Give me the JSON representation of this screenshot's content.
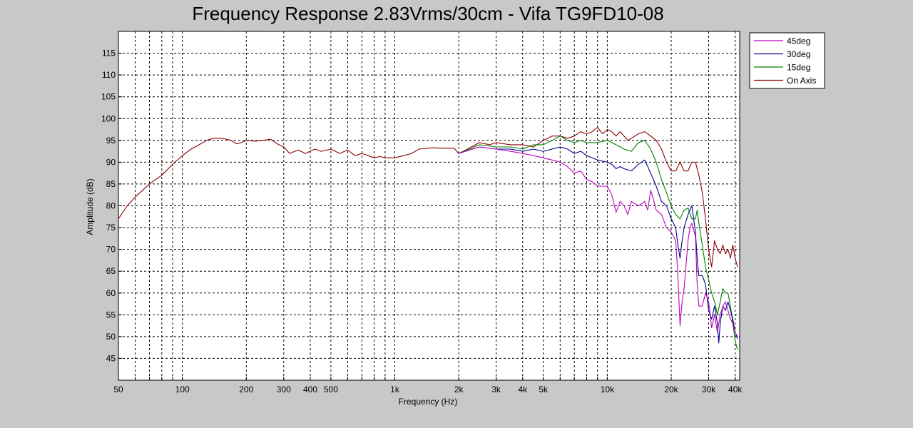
{
  "chart_data": {
    "type": "line",
    "title": "Frequency Response 2.83Vrms/30cm - Vifa TG9FD10-08",
    "xlabel": "Frequency (Hz)",
    "ylabel": "Amplitude (dB)",
    "xscale": "log",
    "xlim": [
      50,
      42000
    ],
    "ylim": [
      40,
      120
    ],
    "grid": true,
    "legend_position": "outside-top-right",
    "x_ticks": [
      {
        "value": 50,
        "label": "50"
      },
      {
        "value": 100,
        "label": "100"
      },
      {
        "value": 200,
        "label": "200"
      },
      {
        "value": 300,
        "label": "300"
      },
      {
        "value": 400,
        "label": "400"
      },
      {
        "value": 500,
        "label": "500"
      },
      {
        "value": 1000,
        "label": "1k"
      },
      {
        "value": 2000,
        "label": "2k"
      },
      {
        "value": 3000,
        "label": "3k"
      },
      {
        "value": 4000,
        "label": "4k"
      },
      {
        "value": 5000,
        "label": "5k"
      },
      {
        "value": 10000,
        "label": "10k"
      },
      {
        "value": 20000,
        "label": "20k"
      },
      {
        "value": 30000,
        "label": "30k"
      },
      {
        "value": 40000,
        "label": "40k"
      }
    ],
    "y_ticks": [
      45,
      50,
      55,
      60,
      65,
      70,
      75,
      80,
      85,
      90,
      95,
      100,
      105,
      110,
      115
    ],
    "series": [
      {
        "name": "45deg",
        "color": "#c000c0",
        "points": [
          [
            2000,
            92
          ],
          [
            2500,
            93.5
          ],
          [
            3000,
            93
          ],
          [
            3500,
            92.5
          ],
          [
            4000,
            92
          ],
          [
            4500,
            91.5
          ],
          [
            5000,
            91
          ],
          [
            5500,
            90.5
          ],
          [
            6000,
            90
          ],
          [
            6500,
            89
          ],
          [
            7000,
            87.5
          ],
          [
            7500,
            88
          ],
          [
            8000,
            86
          ],
          [
            8500,
            85.5
          ],
          [
            9000,
            84.5
          ],
          [
            10000,
            84.5
          ],
          [
            10500,
            82.5
          ],
          [
            11000,
            78.5
          ],
          [
            11500,
            81
          ],
          [
            12000,
            80
          ],
          [
            12500,
            78
          ],
          [
            13000,
            81
          ],
          [
            14000,
            80
          ],
          [
            15000,
            81
          ],
          [
            15500,
            79
          ],
          [
            16000,
            83.5
          ],
          [
            16500,
            81.5
          ],
          [
            17000,
            79
          ],
          [
            18000,
            78
          ],
          [
            19000,
            75
          ],
          [
            20000,
            74
          ],
          [
            21000,
            72
          ],
          [
            21500,
            64
          ],
          [
            22000,
            52.5
          ],
          [
            22500,
            58
          ],
          [
            23000,
            61
          ],
          [
            24000,
            72
          ],
          [
            24500,
            75
          ],
          [
            25000,
            76
          ],
          [
            26000,
            73
          ],
          [
            26500,
            62
          ],
          [
            27000,
            57
          ],
          [
            28000,
            57
          ],
          [
            29000,
            60
          ],
          [
            30000,
            58
          ],
          [
            31000,
            52
          ],
          [
            32000,
            55
          ],
          [
            33000,
            51
          ],
          [
            34000,
            55
          ],
          [
            35000,
            57
          ],
          [
            36000,
            58
          ],
          [
            37000,
            56
          ],
          [
            38000,
            54
          ],
          [
            39000,
            53
          ],
          [
            40000,
            51
          ],
          [
            41000,
            50
          ]
        ]
      },
      {
        "name": "30deg",
        "color": "#00008b",
        "points": [
          [
            2000,
            92
          ],
          [
            2500,
            93.5
          ],
          [
            3000,
            93
          ],
          [
            3500,
            93
          ],
          [
            4000,
            92.5
          ],
          [
            4500,
            93
          ],
          [
            5000,
            92.5
          ],
          [
            5500,
            93
          ],
          [
            6000,
            93.5
          ],
          [
            6500,
            93
          ],
          [
            7000,
            92
          ],
          [
            7500,
            92.5
          ],
          [
            8000,
            91.5
          ],
          [
            8500,
            91
          ],
          [
            9000,
            90.5
          ],
          [
            10000,
            90
          ],
          [
            10500,
            89.5
          ],
          [
            11000,
            88.5
          ],
          [
            11500,
            89
          ],
          [
            12000,
            88.5
          ],
          [
            13000,
            88
          ],
          [
            14000,
            89.5
          ],
          [
            15000,
            90.5
          ],
          [
            15500,
            89
          ],
          [
            16000,
            87.5
          ],
          [
            17000,
            84.5
          ],
          [
            18000,
            81
          ],
          [
            19000,
            80
          ],
          [
            20000,
            77
          ],
          [
            21000,
            75
          ],
          [
            21500,
            71
          ],
          [
            22000,
            68
          ],
          [
            22500,
            72
          ],
          [
            23000,
            75
          ],
          [
            24000,
            78
          ],
          [
            25000,
            80
          ],
          [
            25500,
            77
          ],
          [
            26000,
            74
          ],
          [
            26500,
            68
          ],
          [
            27000,
            64
          ],
          [
            28000,
            64
          ],
          [
            29000,
            62
          ],
          [
            29500,
            59
          ],
          [
            30000,
            56
          ],
          [
            31000,
            54
          ],
          [
            32000,
            57
          ],
          [
            33000,
            53
          ],
          [
            33500,
            48.5
          ],
          [
            34000,
            53
          ],
          [
            35000,
            57
          ],
          [
            36000,
            56
          ],
          [
            37000,
            58
          ],
          [
            38000,
            56
          ],
          [
            39000,
            54
          ],
          [
            40000,
            51
          ],
          [
            41000,
            49.5
          ]
        ]
      },
      {
        "name": "15deg",
        "color": "#008000",
        "points": [
          [
            2000,
            92
          ],
          [
            2500,
            94
          ],
          [
            3000,
            93.5
          ],
          [
            3500,
            93.5
          ],
          [
            4000,
            93
          ],
          [
            4500,
            94
          ],
          [
            5000,
            94
          ],
          [
            5500,
            95
          ],
          [
            6000,
            96
          ],
          [
            6500,
            95
          ],
          [
            7000,
            94.5
          ],
          [
            7500,
            95
          ],
          [
            8000,
            94.5
          ],
          [
            8500,
            94.5
          ],
          [
            9000,
            94.5
          ],
          [
            10000,
            95
          ],
          [
            10500,
            94.5
          ],
          [
            11000,
            94
          ],
          [
            11500,
            93.5
          ],
          [
            12000,
            93
          ],
          [
            13000,
            92.5
          ],
          [
            14000,
            94.5
          ],
          [
            15000,
            95
          ],
          [
            16000,
            93
          ],
          [
            17000,
            90
          ],
          [
            18000,
            86
          ],
          [
            19000,
            83
          ],
          [
            20000,
            80
          ],
          [
            21000,
            78
          ],
          [
            22000,
            77
          ],
          [
            22500,
            78
          ],
          [
            23000,
            79
          ],
          [
            24000,
            79.5
          ],
          [
            25000,
            77
          ],
          [
            26000,
            77
          ],
          [
            26500,
            79
          ],
          [
            27000,
            76
          ],
          [
            28000,
            71
          ],
          [
            29000,
            66
          ],
          [
            30000,
            63
          ],
          [
            31000,
            60
          ],
          [
            32000,
            58
          ],
          [
            33000,
            55
          ],
          [
            34000,
            58
          ],
          [
            35000,
            61
          ],
          [
            36000,
            60
          ],
          [
            37000,
            60
          ],
          [
            38000,
            57
          ],
          [
            39000,
            53
          ],
          [
            40000,
            49
          ],
          [
            41000,
            47
          ]
        ]
      },
      {
        "name": "On Axis",
        "color": "#8b0000",
        "points": [
          [
            50,
            77
          ],
          [
            55,
            80
          ],
          [
            60,
            82
          ],
          [
            70,
            85
          ],
          [
            80,
            87
          ],
          [
            90,
            89.5
          ],
          [
            100,
            91.5
          ],
          [
            110,
            93
          ],
          [
            120,
            94
          ],
          [
            130,
            95
          ],
          [
            140,
            95.5
          ],
          [
            150,
            95.5
          ],
          [
            160,
            95.3
          ],
          [
            170,
            95
          ],
          [
            180,
            94.2
          ],
          [
            190,
            94.5
          ],
          [
            200,
            95
          ],
          [
            220,
            94.8
          ],
          [
            240,
            95
          ],
          [
            260,
            95.3
          ],
          [
            280,
            94.2
          ],
          [
            300,
            93.5
          ],
          [
            320,
            92
          ],
          [
            350,
            92.8
          ],
          [
            380,
            92
          ],
          [
            420,
            93
          ],
          [
            450,
            92.5
          ],
          [
            500,
            93
          ],
          [
            550,
            92
          ],
          [
            600,
            92.8
          ],
          [
            650,
            91.5
          ],
          [
            700,
            92
          ],
          [
            750,
            91.5
          ],
          [
            800,
            91
          ],
          [
            850,
            91.3
          ],
          [
            900,
            91
          ],
          [
            1000,
            91
          ],
          [
            1100,
            91.5
          ],
          [
            1200,
            92
          ],
          [
            1300,
            93
          ],
          [
            1500,
            93.3
          ],
          [
            1700,
            93.2
          ],
          [
            1900,
            93.2
          ],
          [
            2000,
            92
          ],
          [
            2200,
            93
          ],
          [
            2500,
            94.5
          ],
          [
            2800,
            94
          ],
          [
            3000,
            94.5
          ],
          [
            3500,
            94
          ],
          [
            4000,
            94
          ],
          [
            4500,
            93.5
          ],
          [
            5000,
            95
          ],
          [
            5500,
            96
          ],
          [
            6000,
            96
          ],
          [
            6500,
            95.5
          ],
          [
            7000,
            96
          ],
          [
            7500,
            97
          ],
          [
            8000,
            96.5
          ],
          [
            8500,
            97
          ],
          [
            9000,
            98
          ],
          [
            9500,
            96.5
          ],
          [
            10000,
            97.5
          ],
          [
            10500,
            97
          ],
          [
            11000,
            96
          ],
          [
            11500,
            97
          ],
          [
            12000,
            96
          ],
          [
            12500,
            95
          ],
          [
            13000,
            95.5
          ],
          [
            14000,
            96.5
          ],
          [
            15000,
            97
          ],
          [
            16000,
            96
          ],
          [
            17000,
            95
          ],
          [
            18000,
            93
          ],
          [
            19000,
            90
          ],
          [
            20000,
            88
          ],
          [
            21000,
            88
          ],
          [
            22000,
            90
          ],
          [
            23000,
            88
          ],
          [
            24000,
            88
          ],
          [
            25000,
            90
          ],
          [
            26000,
            90
          ],
          [
            27000,
            87
          ],
          [
            28000,
            83
          ],
          [
            29000,
            77
          ],
          [
            30000,
            70
          ],
          [
            31000,
            66
          ],
          [
            32000,
            72
          ],
          [
            33000,
            70
          ],
          [
            34000,
            69
          ],
          [
            35000,
            71
          ],
          [
            36000,
            69
          ],
          [
            37000,
            70
          ],
          [
            38000,
            68
          ],
          [
            39000,
            71
          ],
          [
            40000,
            68
          ],
          [
            41000,
            66
          ]
        ]
      }
    ]
  }
}
